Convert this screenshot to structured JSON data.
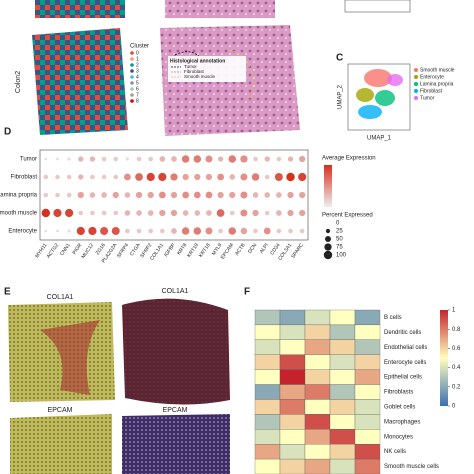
{
  "panel_labels": {
    "c": "C",
    "d": "D",
    "e": "E",
    "f": "F"
  },
  "top": {
    "sample_label": "Colon2",
    "cluster_legend": {
      "title": "Cluster",
      "items": [
        "0",
        "1",
        "2",
        "3",
        "4",
        "5",
        "6",
        "7",
        "8"
      ],
      "colors": [
        "#e64b35",
        "#f39b7f",
        "#00a087",
        "#3c5488",
        "#4dbbd5",
        "#8491b4",
        "#91d1c2",
        "#b09c85",
        "#dc0000"
      ]
    },
    "histology_legend": {
      "title": "Histological annotation",
      "items": [
        "Tumor",
        "Fibroblast",
        "Smooth muscle"
      ]
    }
  },
  "umap": {
    "x_label": "UMAP_1",
    "y_label": "UMAP_2",
    "legend": [
      {
        "name": "Smooth muscle",
        "color": "#f8766d"
      },
      {
        "name": "Enterocyte",
        "color": "#a3a500"
      },
      {
        "name": "Lamina propria",
        "color": "#00bf7d"
      },
      {
        "name": "Fibroblast",
        "color": "#00b0f6"
      },
      {
        "name": "Tumor",
        "color": "#e76bf3"
      }
    ]
  },
  "dotplot": {
    "rows": [
      "Tumor",
      "Fibroblast",
      "Lamina propria",
      "Smooth muscle",
      "Enterocyte"
    ],
    "genes": [
      "MYH11",
      "ACTG2",
      "CNN1",
      "PIGR",
      "MUC12",
      "ZG16",
      "PLA2G2A",
      "SFRP4",
      "CTGA",
      "SFRP2",
      "COL1A1",
      "IGFBP",
      "KRT8",
      "KRT19",
      "KRT18",
      "MYL9",
      "EPCAM",
      "ACTB",
      "DCN",
      "ALPI",
      "CD34",
      "COL3A1",
      "SPARC"
    ],
    "expression": [
      [
        0.1,
        0.1,
        0.1,
        0.3,
        0.3,
        0.2,
        0.2,
        0.1,
        0.2,
        0.2,
        0.3,
        0.3,
        0.6,
        0.6,
        0.5,
        0.3,
        0.6,
        0.5,
        0.2,
        0.3,
        0.2,
        0.3,
        0.4
      ],
      [
        0.2,
        0.2,
        0.2,
        0.3,
        0.2,
        0.2,
        0.2,
        0.5,
        0.7,
        0.9,
        0.9,
        0.6,
        0.4,
        0.4,
        0.4,
        0.5,
        0.3,
        0.5,
        0.6,
        0.2,
        0.8,
        1.0,
        0.9
      ],
      [
        0.2,
        0.2,
        0.2,
        0.4,
        0.3,
        0.3,
        0.4,
        0.3,
        0.4,
        0.4,
        0.5,
        0.4,
        0.5,
        0.5,
        0.5,
        0.4,
        0.4,
        0.5,
        0.3,
        0.3,
        0.3,
        0.4,
        0.4
      ],
      [
        1.0,
        0.9,
        0.9,
        0.2,
        0.2,
        0.2,
        0.2,
        0.3,
        0.3,
        0.3,
        0.4,
        0.4,
        0.3,
        0.3,
        0.3,
        0.7,
        0.2,
        0.5,
        0.4,
        0.2,
        0.3,
        0.4,
        0.4
      ],
      [
        0.1,
        0.1,
        0.1,
        0.9,
        0.9,
        0.8,
        0.8,
        0.2,
        0.2,
        0.2,
        0.2,
        0.3,
        0.6,
        0.6,
        0.5,
        0.2,
        0.6,
        0.4,
        0.2,
        0.5,
        0.2,
        0.2,
        0.2
      ]
    ],
    "percent": [
      [
        10,
        10,
        15,
        40,
        40,
        30,
        30,
        15,
        30,
        30,
        45,
        45,
        80,
        80,
        70,
        40,
        80,
        75,
        30,
        40,
        30,
        40,
        55
      ],
      [
        30,
        30,
        30,
        40,
        30,
        30,
        30,
        65,
        85,
        95,
        95,
        75,
        55,
        55,
        55,
        65,
        45,
        70,
        80,
        30,
        90,
        100,
        95
      ],
      [
        30,
        30,
        30,
        55,
        45,
        45,
        55,
        45,
        55,
        55,
        65,
        55,
        65,
        65,
        65,
        55,
        55,
        70,
        45,
        45,
        45,
        55,
        55
      ],
      [
        100,
        95,
        95,
        30,
        30,
        30,
        30,
        45,
        45,
        45,
        55,
        55,
        45,
        45,
        45,
        85,
        30,
        70,
        55,
        30,
        45,
        55,
        55
      ],
      [
        10,
        10,
        15,
        95,
        95,
        90,
        90,
        30,
        30,
        30,
        30,
        45,
        80,
        80,
        70,
        30,
        80,
        60,
        30,
        65,
        30,
        30,
        30
      ]
    ],
    "color_legend_title": "Average Expression",
    "size_legend_title": "Percent Expressed",
    "size_ticks": [
      0,
      25,
      50,
      75,
      100
    ]
  },
  "spatial": {
    "titles": [
      "COL1A1",
      "COL1A1",
      "EPCAM",
      "EPCAM"
    ]
  },
  "heatmap": {
    "rows": [
      "B cells",
      "Dendritic cells",
      "Endothelial cells",
      "Enterocyte cells",
      "Epithelial cells",
      "Fibroblasts",
      "Goblet cells",
      "Macrophages",
      "Monocytes",
      "NK cells",
      "Smooth muscle cells"
    ],
    "values": [
      [
        0.3,
        0.2,
        0.4,
        0.5,
        0.2
      ],
      [
        0.5,
        0.4,
        0.6,
        0.3,
        0.5
      ],
      [
        0.4,
        0.5,
        0.7,
        0.6,
        0.3
      ],
      [
        0.6,
        0.9,
        0.5,
        0.4,
        0.6
      ],
      [
        0.5,
        1.0,
        0.6,
        0.5,
        0.7
      ],
      [
        0.2,
        0.7,
        0.8,
        0.3,
        0.5
      ],
      [
        0.6,
        0.8,
        0.5,
        0.6,
        0.4
      ],
      [
        0.3,
        0.6,
        0.9,
        0.5,
        0.4
      ],
      [
        0.4,
        0.5,
        0.7,
        0.9,
        0.5
      ],
      [
        0.7,
        0.4,
        0.5,
        0.6,
        0.9
      ],
      [
        0.5,
        0.6,
        0.7,
        0.4,
        0.8
      ]
    ],
    "colorbar_ticks": [
      1,
      0.8,
      0.6,
      0.4,
      0.2,
      0
    ]
  }
}
